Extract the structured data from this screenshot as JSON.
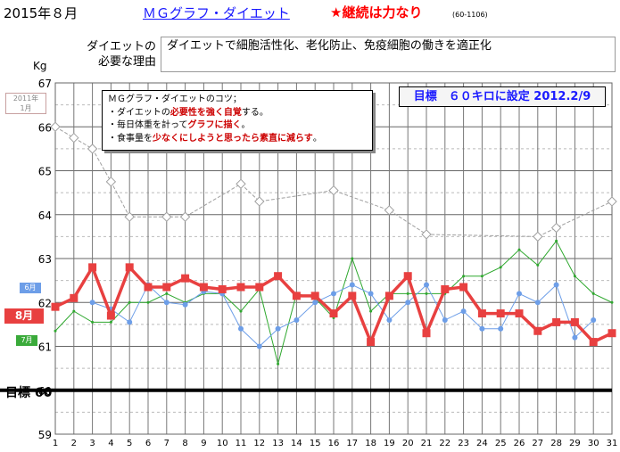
{
  "header": {
    "year_month": "2015年８月",
    "graph_title": "ＭＧグラフ・ダイエット",
    "slogan": "★継続は力なり",
    "code": "(60-1106)"
  },
  "reason": {
    "label_line1": "ダイエットの",
    "label_line2": "必要な理由",
    "text": "ダイエットで細胞活性化、老化防止、免疫細胞の働きを適正化"
  },
  "unit": "Kg",
  "last_year_label": {
    "line1": "2011年",
    "line2": "1月"
  },
  "target_side_label": "目標 60",
  "tips": {
    "title": "ＭＧグラフ・ダイエットのコツ；",
    "line1_pre": "・ダイエットの",
    "line1_red": "必要性を強く自覚",
    "line1_post": "する。",
    "line2_pre": "・毎日体重を計って",
    "line2_red": "グラフに描く",
    "line2_post": "。",
    "line3_pre": "・食事量を",
    "line3_red": "少なくにしようと思ったら素直に減らす",
    "line3_post": "。"
  },
  "goal": "目標　６０キロに設定 2012.2/9",
  "month_tags": {
    "jun": "6月",
    "aug": "8月",
    "jul": "7月"
  },
  "colors": {
    "aug": "#e84040",
    "jul": "#2ea82e",
    "jun": "#6d9ee8",
    "last_year": "#a0a0a0",
    "goal_line": "#000000"
  },
  "chart_data": {
    "type": "line",
    "ylabel": "Kg",
    "ylim": [
      59,
      67
    ],
    "yticks": [
      59,
      60,
      61,
      62,
      63,
      64,
      65,
      66,
      67
    ],
    "x": [
      1,
      2,
      3,
      4,
      5,
      6,
      7,
      8,
      9,
      10,
      11,
      12,
      13,
      14,
      15,
      16,
      17,
      18,
      19,
      20,
      21,
      22,
      23,
      24,
      25,
      26,
      27,
      28,
      29,
      30,
      31
    ],
    "target": 60,
    "series": [
      {
        "name": "8月",
        "key": "aug",
        "values": [
          61.9,
          62.1,
          62.8,
          61.7,
          62.8,
          62.35,
          62.35,
          62.55,
          62.35,
          62.3,
          62.35,
          62.35,
          62.6,
          62.15,
          62.15,
          61.75,
          62.15,
          61.1,
          62.15,
          62.6,
          61.3,
          62.3,
          62.35,
          61.75,
          61.75,
          61.75,
          61.35,
          61.55,
          61.55,
          61.1,
          61.3
        ]
      },
      {
        "name": "7月",
        "key": "jul",
        "values": [
          61.35,
          61.8,
          61.55,
          61.55,
          62.0,
          62.0,
          62.2,
          62.0,
          62.2,
          62.2,
          61.8,
          62.3,
          60.6,
          62.2,
          62.1,
          61.65,
          63.0,
          61.8,
          62.2,
          62.2,
          62.2,
          62.2,
          62.6,
          62.6,
          62.8,
          63.2,
          62.85,
          63.4,
          62.6,
          62.2,
          62.0
        ]
      },
      {
        "name": "6月",
        "key": "jun",
        "values": [
          null,
          null,
          62.0,
          61.85,
          61.55,
          62.4,
          62.0,
          61.95,
          62.25,
          62.2,
          61.4,
          61.0,
          61.4,
          61.6,
          62.0,
          62.2,
          62.4,
          62.2,
          61.6,
          62.0,
          62.4,
          61.6,
          61.8,
          61.4,
          61.4,
          62.2,
          62.0,
          62.4,
          61.2,
          61.6,
          null
        ]
      },
      {
        "name": "2011年1月",
        "key": "last_year",
        "points": [
          [
            1,
            66.0
          ],
          [
            2,
            65.75
          ],
          [
            3,
            65.5
          ],
          [
            4,
            64.75
          ],
          [
            5,
            63.95
          ],
          [
            7,
            63.95
          ],
          [
            8,
            63.95
          ],
          [
            11,
            64.7
          ],
          [
            12,
            64.3
          ],
          [
            16,
            64.55
          ],
          [
            19,
            64.1
          ],
          [
            21,
            63.55
          ],
          [
            27,
            63.5
          ],
          [
            28,
            63.7
          ],
          [
            31,
            64.3
          ]
        ]
      }
    ]
  }
}
